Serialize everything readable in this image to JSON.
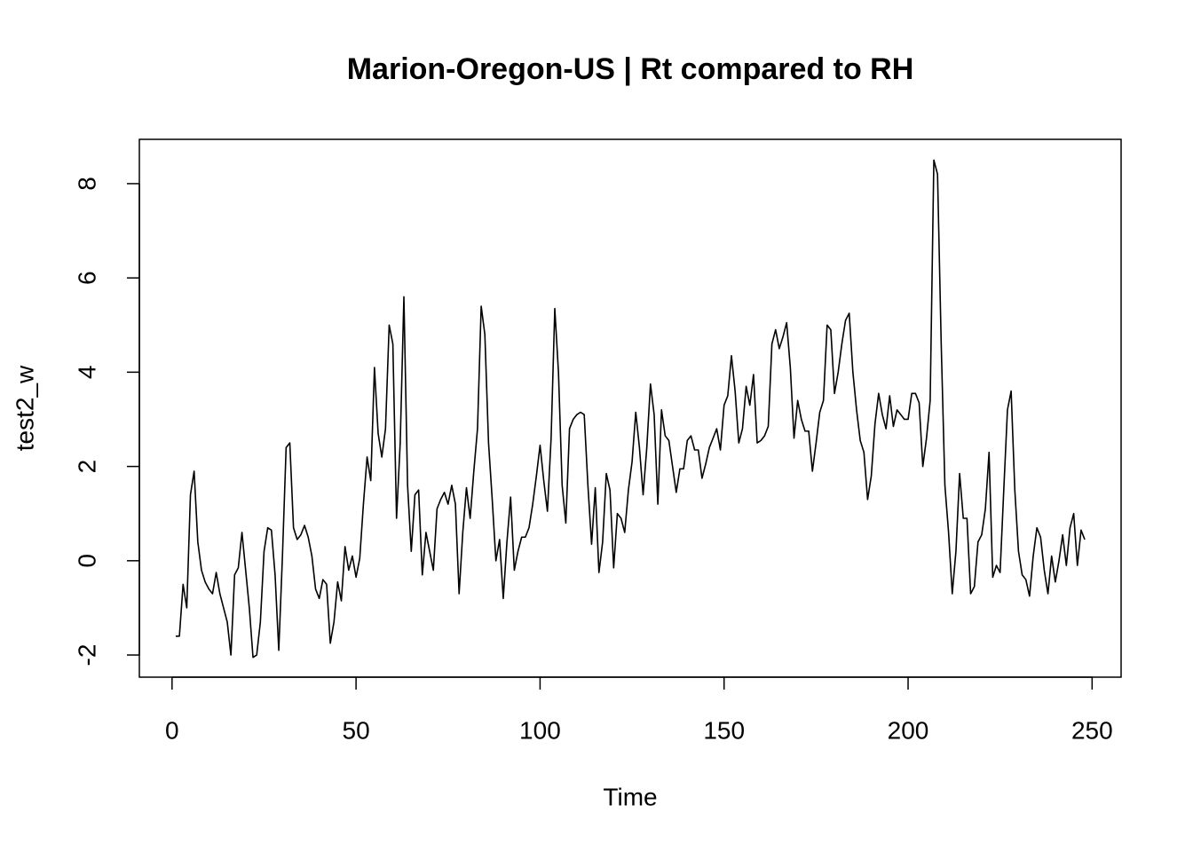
{
  "chart_data": {
    "type": "line",
    "title": "Marion-Oregon-US | Rt compared to RH",
    "x_label": "Time",
    "y_label": "test2_w",
    "x": [
      1,
      2,
      3,
      4,
      5,
      6,
      7,
      8,
      9,
      10,
      11,
      12,
      13,
      14,
      15,
      16,
      17,
      18,
      19,
      20,
      21,
      22,
      23,
      24,
      25,
      26,
      27,
      28,
      29,
      30,
      31,
      32,
      33,
      34,
      35,
      36,
      37,
      38,
      39,
      40,
      41,
      42,
      43,
      44,
      45,
      46,
      47,
      48,
      49,
      50,
      51,
      52,
      53,
      54,
      55,
      56,
      57,
      58,
      59,
      60,
      61,
      62,
      63,
      64,
      65,
      66,
      67,
      68,
      69,
      70,
      71,
      72,
      73,
      74,
      75,
      76,
      77,
      78,
      79,
      80,
      81,
      82,
      83,
      84,
      85,
      86,
      87,
      88,
      89,
      90,
      91,
      92,
      93,
      94,
      95,
      96,
      97,
      98,
      99,
      100,
      101,
      102,
      103,
      104,
      105,
      106,
      107,
      108,
      109,
      110,
      111,
      112,
      113,
      114,
      115,
      116,
      117,
      118,
      119,
      120,
      121,
      122,
      123,
      124,
      125,
      126,
      127,
      128,
      129,
      130,
      131,
      132,
      133,
      134,
      135,
      136,
      137,
      138,
      139,
      140,
      141,
      142,
      143,
      144,
      145,
      146,
      147,
      148,
      149,
      150,
      151,
      152,
      153,
      154,
      155,
      156,
      157,
      158,
      159,
      160,
      161,
      162,
      163,
      164,
      165,
      166,
      167,
      168,
      169,
      170,
      171,
      172,
      173,
      174,
      175,
      176,
      177,
      178,
      179,
      180,
      181,
      182,
      183,
      184,
      185,
      186,
      187,
      188,
      189,
      190,
      191,
      192,
      193,
      194,
      195,
      196,
      197,
      198,
      199,
      200,
      201,
      202,
      203,
      204,
      205,
      206,
      207,
      208,
      209,
      210,
      211,
      212,
      213,
      214,
      215,
      216,
      217,
      218,
      219,
      220,
      221,
      222,
      223,
      224,
      225,
      226,
      227,
      228,
      229,
      230,
      231,
      232,
      233,
      234,
      235,
      236,
      237,
      238,
      239,
      240,
      241,
      242,
      243,
      244,
      245,
      246,
      247,
      248
    ],
    "values": [
      -1.6,
      -1.6,
      -0.5,
      -1.0,
      1.4,
      1.9,
      0.4,
      -0.2,
      -0.45,
      -0.6,
      -0.7,
      -0.25,
      -0.7,
      -1.0,
      -1.3,
      -2.0,
      -0.3,
      -0.15,
      0.6,
      -0.2,
      -1.0,
      -2.05,
      -2.0,
      -1.3,
      0.2,
      0.7,
      0.65,
      -0.3,
      -1.9,
      0.1,
      2.4,
      2.5,
      0.7,
      0.45,
      0.55,
      0.75,
      0.5,
      0.1,
      -0.6,
      -0.8,
      -0.4,
      -0.5,
      -1.75,
      -1.3,
      -0.45,
      -0.85,
      0.3,
      -0.2,
      0.1,
      -0.35,
      0.05,
      1.2,
      2.2,
      1.7,
      4.1,
      2.7,
      2.2,
      2.8,
      5.0,
      4.6,
      0.9,
      2.5,
      5.6,
      1.6,
      0.2,
      1.4,
      1.5,
      -0.3,
      0.6,
      0.2,
      -0.2,
      1.1,
      1.3,
      1.45,
      1.2,
      1.6,
      1.2,
      -0.7,
      0.6,
      1.55,
      0.9,
      1.9,
      2.8,
      5.4,
      4.8,
      2.5,
      1.3,
      0.0,
      0.45,
      -0.8,
      0.4,
      1.35,
      -0.2,
      0.2,
      0.5,
      0.5,
      0.7,
      1.2,
      1.8,
      2.45,
      1.7,
      1.05,
      2.6,
      5.35,
      4.0,
      1.6,
      0.8,
      2.8,
      3.0,
      3.1,
      3.15,
      3.1,
      1.6,
      0.35,
      1.55,
      -0.25,
      0.4,
      1.85,
      1.5,
      -0.15,
      1.0,
      0.9,
      0.6,
      1.5,
      2.1,
      3.15,
      2.4,
      1.4,
      2.4,
      3.75,
      3.1,
      1.2,
      3.2,
      2.65,
      2.55,
      2.0,
      1.45,
      1.95,
      1.95,
      2.55,
      2.65,
      2.35,
      2.35,
      1.75,
      2.05,
      2.4,
      2.6,
      2.8,
      2.35,
      3.3,
      3.5,
      4.35,
      3.6,
      2.5,
      2.8,
      3.7,
      3.3,
      3.95,
      2.5,
      2.55,
      2.65,
      2.85,
      4.6,
      4.9,
      4.5,
      4.75,
      5.05,
      4.1,
      2.6,
      3.4,
      3.0,
      2.75,
      2.75,
      1.9,
      2.5,
      3.15,
      3.4,
      5.0,
      4.9,
      3.55,
      4.0,
      4.6,
      5.1,
      5.25,
      4.0,
      3.2,
      2.55,
      2.3,
      1.3,
      1.8,
      2.9,
      3.55,
      3.1,
      2.8,
      3.5,
      2.85,
      3.2,
      3.1,
      3.0,
      3.0,
      3.55,
      3.55,
      3.35,
      2.0,
      2.6,
      3.4,
      8.5,
      8.2,
      4.6,
      1.6,
      0.6,
      -0.7,
      0.2,
      1.85,
      0.9,
      0.9,
      -0.7,
      -0.55,
      0.4,
      0.55,
      1.1,
      2.3,
      -0.35,
      -0.1,
      -0.25,
      1.5,
      3.2,
      3.6,
      1.5,
      0.2,
      -0.3,
      -0.4,
      -0.75,
      0.1,
      0.7,
      0.5,
      -0.2,
      -0.7,
      0.1,
      -0.45,
      0.0,
      0.55,
      -0.1,
      0.7,
      1.0,
      -0.1,
      0.65,
      0.45
    ],
    "color": "#000000",
    "xlim": [
      -8.88,
      257.88
    ],
    "xticks": [
      0,
      50,
      100,
      150,
      200,
      250
    ],
    "ylim": [
      -2.47,
      8.94
    ],
    "yticks": [
      -2,
      0,
      2,
      4,
      6,
      8
    ]
  }
}
